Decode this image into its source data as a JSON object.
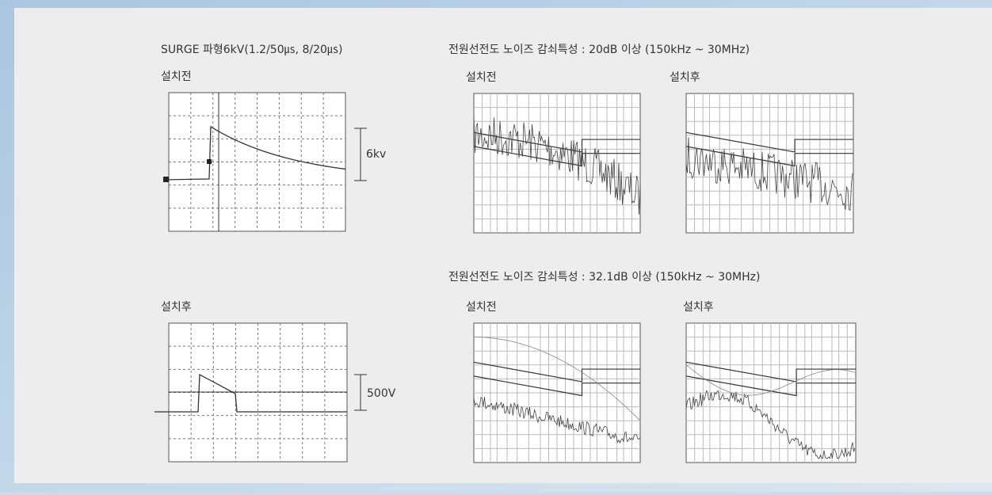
{
  "surge": {
    "title": "SURGE 파형6kV(1.2/50㎲, 8/20㎲)",
    "before": {
      "label": "설치전",
      "scale": "6kv"
    },
    "after": {
      "label": "설치후",
      "scale": "500V"
    }
  },
  "noise": [
    {
      "title": "전원선전도 노이즈 감쇠특성 : 20dB 이상 (150kHz ~ 30MHz)",
      "before": "설치전",
      "after": "설치후"
    },
    {
      "title": "전원선전도 노이즈 감쇠특성 : 32.1dB 이상 (150kHz ~ 30MHz)",
      "before": "설치전",
      "after": "설치후"
    }
  ]
}
